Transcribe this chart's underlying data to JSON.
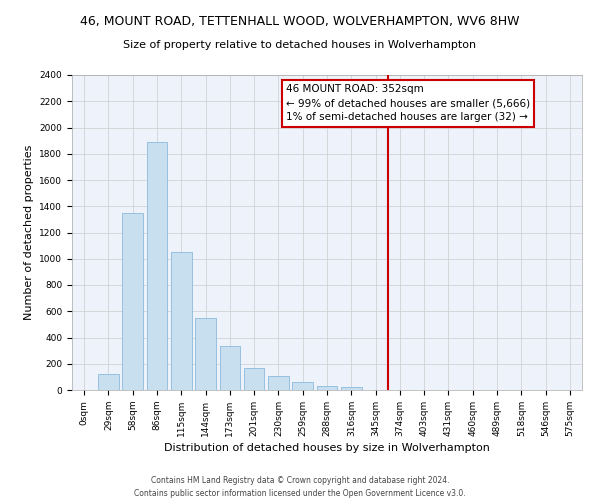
{
  "title": "46, MOUNT ROAD, TETTENHALL WOOD, WOLVERHAMPTON, WV6 8HW",
  "subtitle": "Size of property relative to detached houses in Wolverhampton",
  "xlabel": "Distribution of detached houses by size in Wolverhampton",
  "ylabel": "Number of detached properties",
  "bar_labels": [
    "0sqm",
    "29sqm",
    "58sqm",
    "86sqm",
    "115sqm",
    "144sqm",
    "173sqm",
    "201sqm",
    "230sqm",
    "259sqm",
    "288sqm",
    "316sqm",
    "345sqm",
    "374sqm",
    "403sqm",
    "431sqm",
    "460sqm",
    "489sqm",
    "518sqm",
    "546sqm",
    "575sqm"
  ],
  "bar_values": [
    0,
    125,
    1350,
    1890,
    1050,
    550,
    335,
    165,
    110,
    60,
    30,
    20,
    0,
    0,
    0,
    0,
    0,
    0,
    0,
    0,
    0
  ],
  "bar_color": "#c8dff0",
  "bar_edge_color": "#7ab0d4",
  "background_color": "#edf2fb",
  "plot_background": "#ffffff",
  "grid_color": "#cccccc",
  "vline_color": "#cc0000",
  "vline_x_index": 12,
  "ylim": [
    0,
    2400
  ],
  "annotation_title": "46 MOUNT ROAD: 352sqm",
  "annotation_line1": "← 99% of detached houses are smaller (5,666)",
  "annotation_line2": "1% of semi-detached houses are larger (32) →",
  "annotation_box_color": "#ffffff",
  "annotation_box_edge": "#cc0000",
  "footer_line1": "Contains HM Land Registry data © Crown copyright and database right 2024.",
  "footer_line2": "Contains public sector information licensed under the Open Government Licence v3.0.",
  "title_fontsize": 9,
  "subtitle_fontsize": 8,
  "tick_fontsize": 6.5,
  "ylabel_fontsize": 8,
  "xlabel_fontsize": 8,
  "annotation_fontsize": 7.5,
  "footer_fontsize": 5.5
}
